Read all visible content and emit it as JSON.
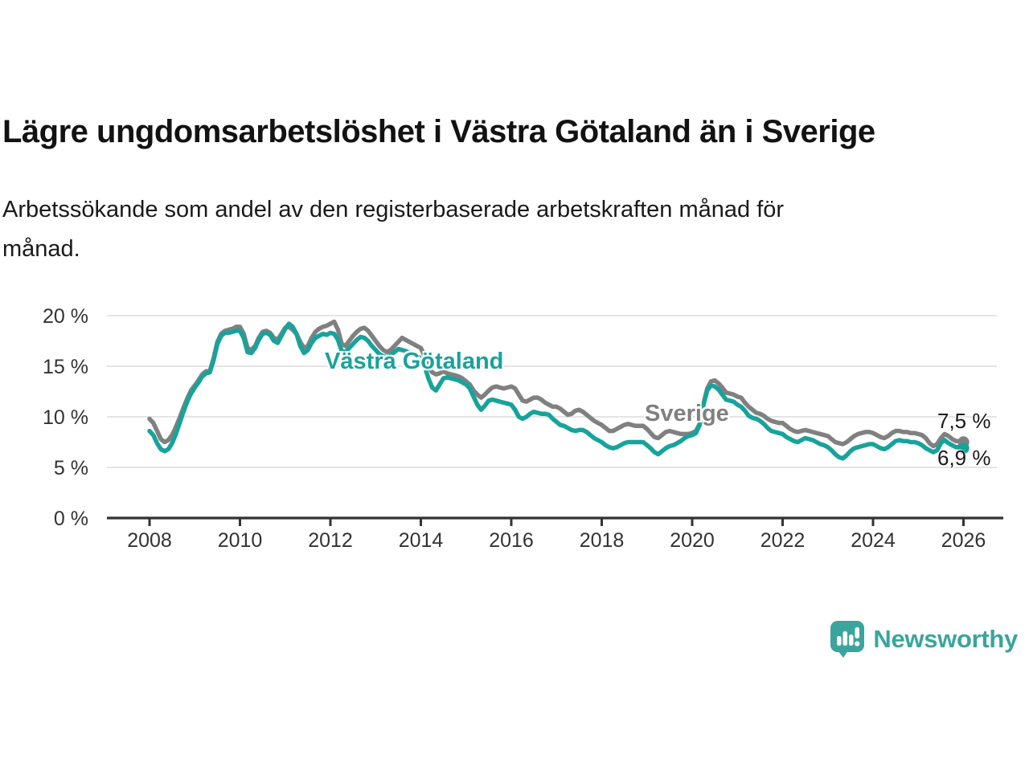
{
  "branding": {
    "logo_text": "Newsworthy",
    "logo_icon": "newsworthy-speech-bubble-bar-chart-icon",
    "brand_color": "#3aa59d"
  },
  "chart_data": {
    "type": "line",
    "title": "Lägre ungdomsarbetslöshet i Västra Götaland än i Sverige",
    "subtitle": "Arbetssökande som andel av den registerbaserade arbetskraften månad för\nmånad.",
    "unit": "%",
    "x_start": "2008-01",
    "x_end": "2026-01",
    "points_per_year": 12,
    "x_tick_labels": [
      "2008",
      "2010",
      "2012",
      "2014",
      "2016",
      "2018",
      "2020",
      "2022",
      "2024",
      "2026"
    ],
    "x_tick_years": [
      2008,
      2010,
      2012,
      2014,
      2016,
      2018,
      2020,
      2022,
      2024,
      2026
    ],
    "y_ticks": [
      0,
      5,
      10,
      15,
      20
    ],
    "y_tick_labels": [
      "0 %",
      "5 %",
      "10 %",
      "15 %",
      "20 %"
    ],
    "ylim": [
      0,
      21
    ],
    "grid": "horizontal",
    "legend_position": "inline-labels",
    "series_labels": {
      "sverige": "Sverige",
      "vastra_gotaland": "Västra Götaland"
    },
    "end_labels": [
      {
        "series": "Sverige",
        "text": "7,5 %",
        "value": 7.5
      },
      {
        "series": "Västra Götaland",
        "text": "6,9 %",
        "value": 6.9
      }
    ],
    "colors": {
      "sverige": "#808080",
      "vastra_gotaland": "#17a39b",
      "grid": "#dcdcdc",
      "axis": "#333333",
      "tick_text": "#333333"
    },
    "series": [
      {
        "name": "Sverige",
        "color": "#808080",
        "values": [
          9.8,
          9.4,
          8.6,
          7.8,
          7.5,
          7.7,
          8.2,
          9.0,
          9.9,
          10.9,
          11.8,
          12.6,
          13.1,
          13.6,
          14.2,
          14.5,
          14.5,
          15.8,
          17.4,
          18.2,
          18.5,
          18.6,
          18.7,
          18.9,
          18.9,
          18.2,
          16.8,
          16.6,
          17.0,
          17.8,
          18.4,
          18.5,
          18.3,
          17.8,
          17.6,
          18.2,
          18.8,
          18.9,
          18.6,
          18.2,
          17.4,
          16.8,
          17.0,
          17.8,
          18.4,
          18.7,
          18.9,
          19.0,
          19.2,
          19.4,
          18.6,
          17.2,
          17.0,
          17.5,
          18.0,
          18.4,
          18.7,
          18.8,
          18.5,
          18.0,
          17.5,
          17.0,
          16.6,
          16.4,
          16.6,
          17.0,
          17.4,
          17.8,
          17.6,
          17.4,
          17.2,
          17.0,
          16.8,
          16.0,
          15.0,
          14.4,
          14.2,
          14.3,
          14.5,
          14.3,
          14.2,
          14.1,
          14.0,
          13.8,
          13.5,
          13.2,
          12.6,
          12.2,
          11.9,
          12.2,
          12.6,
          12.9,
          13.0,
          12.9,
          12.8,
          12.9,
          13.0,
          12.8,
          12.2,
          11.6,
          11.5,
          11.7,
          11.9,
          11.9,
          11.7,
          11.4,
          11.2,
          11.0,
          11.0,
          10.8,
          10.5,
          10.2,
          10.3,
          10.6,
          10.7,
          10.5,
          10.2,
          9.9,
          9.6,
          9.4,
          9.2,
          8.9,
          8.6,
          8.6,
          8.8,
          9.0,
          9.2,
          9.3,
          9.2,
          9.1,
          9.1,
          9.1,
          8.8,
          8.4,
          8.0,
          7.9,
          8.2,
          8.5,
          8.6,
          8.5,
          8.4,
          8.3,
          8.3,
          8.3,
          8.4,
          8.6,
          9.3,
          11.3,
          12.8,
          13.5,
          13.6,
          13.3,
          12.9,
          12.4,
          12.3,
          12.2,
          12.0,
          11.9,
          11.4,
          11.0,
          10.7,
          10.4,
          10.3,
          10.1,
          9.8,
          9.6,
          9.5,
          9.4,
          9.4,
          9.1,
          8.8,
          8.6,
          8.5,
          8.6,
          8.7,
          8.6,
          8.5,
          8.4,
          8.3,
          8.2,
          8.1,
          7.8,
          7.5,
          7.4,
          7.3,
          7.5,
          7.8,
          8.1,
          8.3,
          8.4,
          8.5,
          8.5,
          8.4,
          8.2,
          8.0,
          7.9,
          8.1,
          8.4,
          8.6,
          8.6,
          8.5,
          8.5,
          8.4,
          8.4,
          8.3,
          8.2,
          7.9,
          7.4,
          7.1,
          7.3,
          7.9,
          8.3,
          8.1,
          7.8,
          7.6,
          7.6,
          7.5
        ]
      },
      {
        "name": "Västra Götaland",
        "color": "#17a39b",
        "values": [
          8.6,
          8.2,
          7.4,
          6.8,
          6.6,
          6.8,
          7.4,
          8.3,
          9.4,
          10.5,
          11.5,
          12.3,
          12.9,
          13.4,
          14.0,
          14.3,
          14.4,
          15.6,
          17.2,
          18.0,
          18.3,
          18.3,
          18.4,
          18.5,
          18.5,
          17.8,
          16.4,
          16.3,
          16.8,
          17.6,
          18.2,
          18.3,
          18.1,
          17.5,
          17.3,
          18.0,
          18.7,
          19.2,
          18.9,
          18.2,
          17.0,
          16.3,
          16.6,
          17.3,
          17.8,
          18.0,
          18.2,
          18.1,
          18.3,
          18.2,
          17.6,
          16.5,
          16.4,
          16.8,
          17.2,
          17.6,
          17.9,
          17.8,
          17.5,
          17.0,
          16.6,
          16.2,
          16.0,
          15.9,
          16.1,
          16.4,
          16.7,
          16.6,
          16.5,
          16.3,
          16.2,
          16.0,
          15.8,
          15.0,
          13.8,
          12.9,
          12.6,
          13.2,
          13.8,
          13.9,
          13.8,
          13.7,
          13.6,
          13.4,
          13.2,
          12.8,
          12.0,
          11.2,
          10.7,
          11.1,
          11.6,
          11.7,
          11.6,
          11.5,
          11.4,
          11.3,
          11.2,
          10.7,
          10.0,
          9.8,
          10.0,
          10.3,
          10.5,
          10.4,
          10.3,
          10.3,
          10.2,
          9.8,
          9.5,
          9.2,
          9.1,
          8.9,
          8.7,
          8.6,
          8.7,
          8.7,
          8.5,
          8.2,
          7.9,
          7.7,
          7.5,
          7.2,
          7.0,
          6.9,
          7.0,
          7.2,
          7.4,
          7.5,
          7.5,
          7.5,
          7.5,
          7.5,
          7.2,
          6.9,
          6.5,
          6.3,
          6.6,
          6.9,
          7.1,
          7.2,
          7.4,
          7.6,
          7.9,
          8.1,
          8.2,
          8.4,
          9.2,
          11.2,
          12.6,
          13.1,
          13.0,
          12.7,
          12.2,
          11.7,
          11.6,
          11.5,
          11.2,
          11.0,
          10.6,
          10.1,
          9.9,
          9.8,
          9.6,
          9.3,
          8.9,
          8.6,
          8.5,
          8.4,
          8.3,
          8.0,
          7.8,
          7.6,
          7.5,
          7.7,
          7.9,
          7.8,
          7.7,
          7.5,
          7.3,
          7.2,
          7.0,
          6.7,
          6.3,
          6.0,
          5.9,
          6.2,
          6.6,
          6.9,
          7.0,
          7.1,
          7.2,
          7.3,
          7.3,
          7.1,
          6.9,
          6.8,
          7.0,
          7.3,
          7.6,
          7.7,
          7.6,
          7.6,
          7.5,
          7.5,
          7.4,
          7.2,
          6.9,
          6.7,
          6.5,
          6.7,
          7.4,
          7.7,
          7.4,
          7.2,
          7.0,
          7.0,
          6.9
        ]
      }
    ]
  }
}
